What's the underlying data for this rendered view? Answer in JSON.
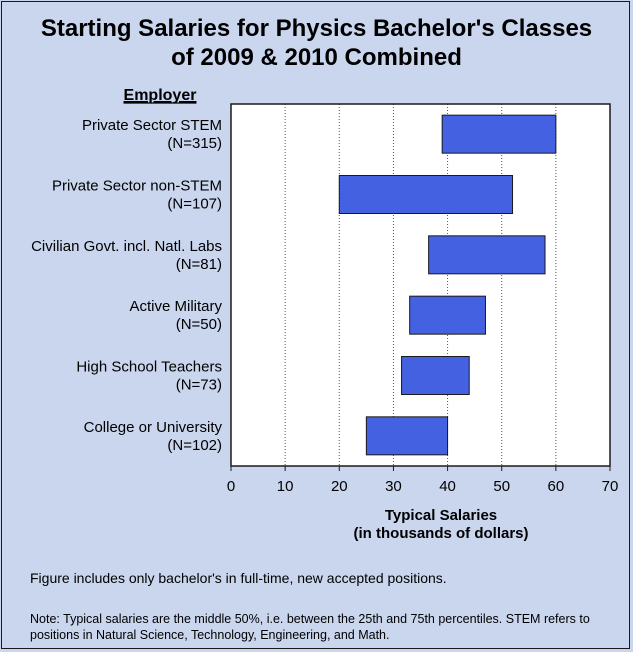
{
  "chart_data": {
    "type": "bar",
    "orientation": "horizontal",
    "subtype": "floating-range",
    "title_lines": [
      "Starting Salaries for Physics Bachelor's Classes",
      "of 2009 & 2010 Combined"
    ],
    "ylabel": "Employer",
    "xlabel_lines": [
      "Typical Salaries",
      "(in thousands of dollars)"
    ],
    "xlim": [
      0,
      70
    ],
    "xticks": [
      0,
      10,
      20,
      30,
      40,
      50,
      60,
      70
    ],
    "grid": "vertical-dotted",
    "categories": [
      {
        "name": "Private Sector STEM",
        "n": "(N=315)",
        "low": 39,
        "high": 60
      },
      {
        "name": "Private Sector non-STEM",
        "n": "(N=107)",
        "low": 20,
        "high": 52
      },
      {
        "name": "Civilian Govt. incl. Natl. Labs",
        "n": "(N=81)",
        "low": 36.5,
        "high": 58
      },
      {
        "name": "Active Military",
        "n": "(N=50)",
        "low": 33,
        "high": 47
      },
      {
        "name": "High School Teachers",
        "n": "(N=73)",
        "low": 31.5,
        "high": 44
      },
      {
        "name": "College or University",
        "n": "(N=102)",
        "low": 25,
        "high": 40
      }
    ],
    "colors": {
      "bar": "#4361e0",
      "bar_edge": "#1a1a1a",
      "background": "#c9d6ee",
      "plot": "#ffffff"
    }
  },
  "notes": {
    "note1": "Figure includes only bachelor's in full-time, new accepted positions.",
    "note2": "Note: Typical salaries are the middle 50%, i.e. between the 25th and 75th percentiles.  STEM refers to positions in Natural Science, Technology, Engineering, and Math."
  }
}
